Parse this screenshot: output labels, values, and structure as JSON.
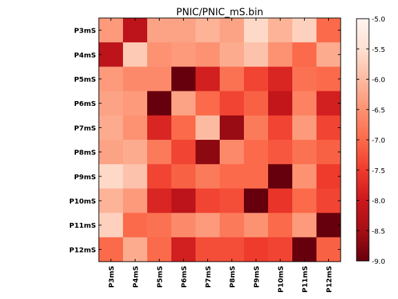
{
  "chart_data": {
    "type": "heatmap",
    "title": "PNIC/PNIC_mS.bin",
    "row_labels": [
      "P3mS",
      "P4mS",
      "P5mS",
      "P6mS",
      "P7mS",
      "P8mS",
      "P9mS",
      "P10mS",
      "P11mS",
      "P12mS"
    ],
    "col_labels": [
      "P3mS",
      "P4mS",
      "P5mS",
      "P6mS",
      "P7mS",
      "P8mS",
      "P9mS",
      "P10mS",
      "P11mS",
      "P12mS"
    ],
    "values": [
      [
        -6.4,
        -8.2,
        -6.3,
        -6.3,
        -6.1,
        -6.3,
        -5.6,
        -6.1,
        -5.7,
        -7.0
      ],
      [
        -8.2,
        -5.8,
        -6.5,
        -6.4,
        -6.5,
        -6.2,
        -5.9,
        -6.5,
        -7.0,
        -6.2
      ],
      [
        -6.4,
        -6.6,
        -6.6,
        -9.0,
        -7.9,
        -6.9,
        -7.4,
        -7.8,
        -6.9,
        -7.0
      ],
      [
        -6.3,
        -6.4,
        -9.0,
        -6.3,
        -7.0,
        -7.4,
        -7.1,
        -8.1,
        -6.7,
        -7.9
      ],
      [
        -6.2,
        -6.5,
        -7.8,
        -7.0,
        -6.0,
        -8.6,
        -6.8,
        -7.4,
        -6.4,
        -7.4
      ],
      [
        -6.3,
        -6.2,
        -6.8,
        -7.4,
        -8.7,
        -6.6,
        -7.0,
        -7.2,
        -6.9,
        -7.1
      ],
      [
        -5.6,
        -5.9,
        -7.4,
        -7.1,
        -6.8,
        -7.0,
        -7.0,
        -9.0,
        -6.5,
        -7.5
      ],
      [
        -6.1,
        -6.4,
        -7.8,
        -8.2,
        -7.4,
        -7.3,
        -9.0,
        -7.6,
        -7.0,
        -7.4
      ],
      [
        -5.7,
        -7.0,
        -6.9,
        -6.6,
        -6.4,
        -6.8,
        -6.5,
        -7.0,
        -6.4,
        -9.0
      ],
      [
        -7.0,
        -6.2,
        -7.0,
        -7.9,
        -7.3,
        -7.3,
        -7.5,
        -7.4,
        -9.0,
        -7.1
      ]
    ],
    "colorbar": {
      "min": -9.0,
      "max": -5.0,
      "ticks": [
        "-5.0",
        "-5.5",
        "-6.0",
        "-6.5",
        "-7.0",
        "-7.5",
        "-8.0",
        "-8.5",
        "-9.0"
      ],
      "colormap": "Reds_r"
    }
  }
}
